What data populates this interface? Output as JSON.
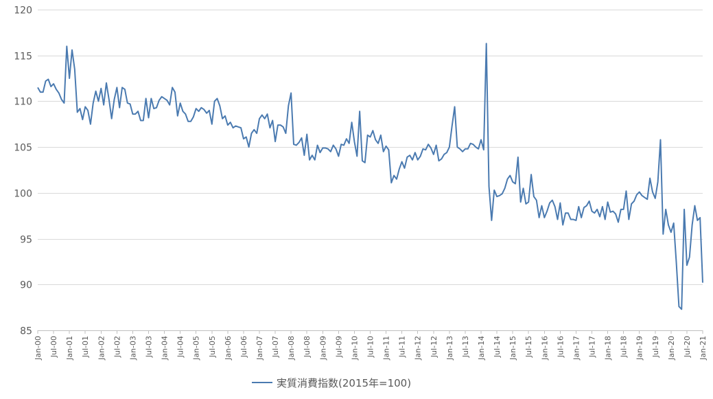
{
  "chart_data": {
    "type": "line",
    "ylim": [
      85,
      120
    ],
    "yticks": [
      "85",
      "90",
      "95",
      "100",
      "105",
      "110",
      "115",
      "120"
    ],
    "xtick_labels": [
      "Jan-00",
      "Jul-00",
      "Jan-01",
      "Jul-01",
      "Jan-02",
      "Jul-02",
      "Jan-03",
      "Jul-03",
      "Jan-04",
      "Jul-04",
      "Jan-05",
      "Jul-05",
      "Jan-06",
      "Jul-06",
      "Jan-07",
      "Jul-07",
      "Jan-08",
      "Jul-08",
      "Jan-09",
      "Jul-09",
      "Jan-10",
      "Jul-10",
      "Jan-11",
      "Jul-11",
      "Jan-12",
      "Jul-12",
      "Jan-13",
      "Jul-13",
      "Jan-14",
      "Jul-14",
      "Jan-15",
      "Jul-15",
      "Jan-16",
      "Jul-16",
      "Jan-17",
      "Jul-17",
      "Jan-18",
      "Jul-18",
      "Jan-19",
      "Jul-19",
      "Jan-20",
      "Jul-20",
      "Jan-21"
    ],
    "x_start": "Jan-00",
    "x_end": "Jan-21",
    "grid": true,
    "legend_position": "bottom",
    "series": [
      {
        "name": "実質消費指数(2015年=100)",
        "color": "#4a7ab0",
        "values": [
          111.5,
          111.0,
          111.0,
          112.2,
          112.4,
          111.6,
          111.9,
          111.3,
          110.9,
          110.2,
          109.8,
          116.0,
          112.5,
          115.6,
          113.5,
          108.8,
          109.2,
          108.0,
          109.4,
          109.0,
          107.5,
          109.8,
          111.1,
          110.0,
          111.4,
          109.6,
          112.0,
          110.2,
          108.1,
          110.2,
          111.5,
          109.3,
          111.5,
          111.3,
          109.8,
          109.7,
          108.6,
          108.6,
          108.9,
          107.9,
          107.9,
          110.3,
          108.2,
          110.3,
          109.2,
          109.3,
          110.1,
          110.5,
          110.3,
          110.1,
          109.6,
          111.5,
          111.0,
          108.4,
          109.8,
          108.9,
          108.6,
          107.8,
          107.8,
          108.3,
          109.2,
          108.9,
          109.3,
          109.1,
          108.7,
          109.0,
          107.5,
          110.0,
          110.3,
          109.5,
          108.1,
          108.4,
          107.4,
          107.7,
          107.1,
          107.3,
          107.2,
          107.1,
          105.9,
          106.1,
          105.0,
          106.5,
          106.9,
          106.5,
          108.1,
          108.5,
          108.1,
          108.6,
          107.1,
          107.9,
          105.6,
          107.4,
          107.4,
          107.2,
          106.5,
          109.5,
          110.9,
          105.3,
          105.2,
          105.5,
          106.0,
          104.1,
          106.4,
          103.6,
          104.1,
          103.6,
          105.2,
          104.4,
          104.9,
          104.9,
          104.8,
          104.5,
          105.2,
          104.8,
          104.0,
          105.3,
          105.2,
          105.9,
          105.4,
          107.7,
          105.6,
          104.0,
          108.9,
          103.5,
          103.3,
          106.3,
          106.1,
          106.8,
          105.8,
          105.4,
          106.3,
          104.5,
          105.1,
          104.7,
          101.1,
          101.9,
          101.5,
          102.6,
          103.4,
          102.7,
          103.9,
          104.1,
          103.6,
          104.4,
          103.6,
          104.0,
          104.8,
          104.7,
          105.3,
          104.9,
          104.2,
          105.2,
          103.5,
          103.7,
          104.2,
          104.4,
          105.0,
          107.3,
          109.4,
          105.0,
          104.8,
          104.5,
          104.8,
          104.8,
          105.4,
          105.3,
          105.0,
          104.8,
          105.8,
          104.7,
          116.3,
          100.7,
          97.0,
          100.3,
          99.6,
          99.7,
          99.9,
          100.5,
          101.5,
          101.9,
          101.2,
          101.0,
          103.9,
          99.0,
          100.5,
          98.8,
          99.0,
          102.0,
          99.6,
          99.2,
          97.3,
          98.6,
          97.3,
          98.0,
          98.9,
          99.2,
          98.5,
          97.1,
          98.9,
          96.5,
          97.8,
          97.8,
          97.1,
          97.1,
          97.0,
          98.5,
          97.3,
          98.4,
          98.6,
          99.1,
          98.0,
          97.8,
          98.2,
          97.4,
          98.5,
          97.1,
          99.0,
          97.9,
          98.0,
          97.7,
          96.8,
          98.2,
          98.2,
          100.2,
          97.1,
          98.8,
          99.1,
          99.8,
          100.1,
          99.7,
          99.5,
          99.3,
          101.6,
          100.1,
          99.4,
          101.2,
          105.8,
          95.5,
          98.2,
          96.5,
          95.7,
          96.7,
          92.4,
          87.6,
          87.3,
          98.2,
          92.1,
          93.0,
          96.5,
          98.6,
          97.0,
          97.3,
          90.2
        ]
      }
    ]
  }
}
